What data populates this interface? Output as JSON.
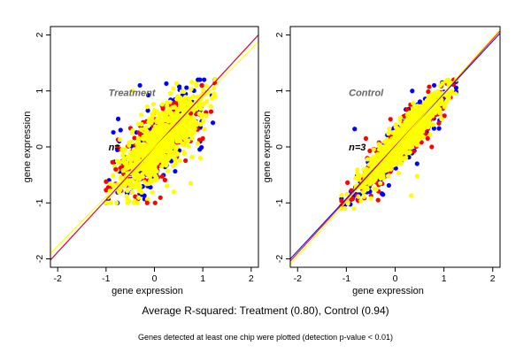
{
  "chart_data": [
    {
      "type": "scatter",
      "panel_label": "Treatment",
      "n_label": "n=",
      "xlabel": "gene expression",
      "ylabel": "gene expression",
      "xlim": [
        -2.15,
        2.15
      ],
      "ylim": [
        -2.15,
        2.15
      ],
      "xticks": [
        "-2",
        "-1",
        "0",
        "1",
        "2"
      ],
      "yticks": [
        "-2",
        "-1",
        "0",
        "1",
        "2"
      ],
      "grid": false,
      "series_colors": [
        "#0000ff",
        "#ff0000",
        "#ffff00"
      ],
      "fit_lines": [
        {
          "color": "#0000ff",
          "x": [
            -2.15,
            2.15
          ],
          "y": [
            -2.02,
            2.0
          ]
        },
        {
          "color": "#ff0000",
          "x": [
            -2.15,
            2.15
          ],
          "y": [
            -2.02,
            2.0
          ]
        },
        {
          "color": "#ffff00",
          "x": [
            -2.15,
            2.15
          ],
          "y": [
            -1.9,
            1.88
          ]
        }
      ],
      "cloud": {
        "x_range": [
          -1.0,
          1.25
        ],
        "y_range": [
          -1.0,
          1.2
        ]
      },
      "outliers": [
        {
          "color": "#0000ff",
          "x": -0.3,
          "y": 1.1
        },
        {
          "color": "#0000ff",
          "x": -0.75,
          "y": 0.5
        },
        {
          "color": "#0000ff",
          "x": -0.7,
          "y": 0.3
        },
        {
          "color": "#0000ff",
          "x": 0.9,
          "y": 1.2
        },
        {
          "color": "#ff0000",
          "x": 1.0,
          "y": 0.15
        },
        {
          "color": "#ff0000",
          "x": -0.15,
          "y": -1.0
        },
        {
          "color": "#ff0000",
          "x": -0.8,
          "y": -0.4
        },
        {
          "color": "#ff0000",
          "x": 0.75,
          "y": 0.6
        },
        {
          "color": "#ffff00",
          "x": 0.75,
          "y": -0.65
        },
        {
          "color": "#ffff00",
          "x": 0.4,
          "y": -0.8
        },
        {
          "color": "#ffff00",
          "x": 0.95,
          "y": -0.2
        },
        {
          "color": "#ffff00",
          "x": -0.45,
          "y": 1.0
        }
      ]
    },
    {
      "type": "scatter",
      "panel_label": "Control",
      "n_label": "n=3",
      "xlabel": "gene expression",
      "ylabel": "gene expression",
      "xlim": [
        -2.15,
        2.15
      ],
      "ylim": [
        -2.15,
        2.15
      ],
      "xticks": [
        "-2",
        "-1",
        "0",
        "1",
        "2"
      ],
      "yticks": [
        "-2",
        "-1",
        "0",
        "1",
        "2"
      ],
      "grid": false,
      "series_colors": [
        "#0000ff",
        "#ff0000",
        "#ffff00"
      ],
      "fit_lines": [
        {
          "color": "#0000ff",
          "x": [
            -2.15,
            2.15
          ],
          "y": [
            -2.0,
            2.03
          ]
        },
        {
          "color": "#ff0000",
          "x": [
            -2.15,
            2.15
          ],
          "y": [
            -2.04,
            2.07
          ]
        },
        {
          "color": "#ffff00",
          "x": [
            -2.15,
            2.15
          ],
          "y": [
            -2.1,
            2.1
          ]
        }
      ],
      "cloud": {
        "x_range": [
          -1.1,
          1.25
        ],
        "y_range": [
          -1.1,
          1.2
        ]
      },
      "outliers": [
        {
          "color": "#0000ff",
          "x": -0.83,
          "y": 0.32
        },
        {
          "color": "#0000ff",
          "x": 0.35,
          "y": 1.0
        },
        {
          "color": "#0000ff",
          "x": 0.8,
          "y": 1.1
        },
        {
          "color": "#0000ff",
          "x": 0.45,
          "y": -0.3
        },
        {
          "color": "#0000ff",
          "x": 0.9,
          "y": 0.33
        },
        {
          "color": "#0000ff",
          "x": -0.25,
          "y": -0.85
        },
        {
          "color": "#ff0000",
          "x": -0.35,
          "y": -0.95
        },
        {
          "color": "#ff0000",
          "x": 0.75,
          "y": 0.0
        },
        {
          "color": "#ff0000",
          "x": -0.6,
          "y": 0.15
        },
        {
          "color": "#ffff00",
          "x": 0.33,
          "y": -0.87
        },
        {
          "color": "#ffff00",
          "x": 0.45,
          "y": -0.52
        },
        {
          "color": "#ffff00",
          "x": 0.95,
          "y": 0.5
        }
      ]
    }
  ],
  "caption": "Average R-squared: Treatment (0.80), Control (0.94)",
  "footnote": "Genes detected at least one chip were plotted (detection p-value < 0.01)"
}
